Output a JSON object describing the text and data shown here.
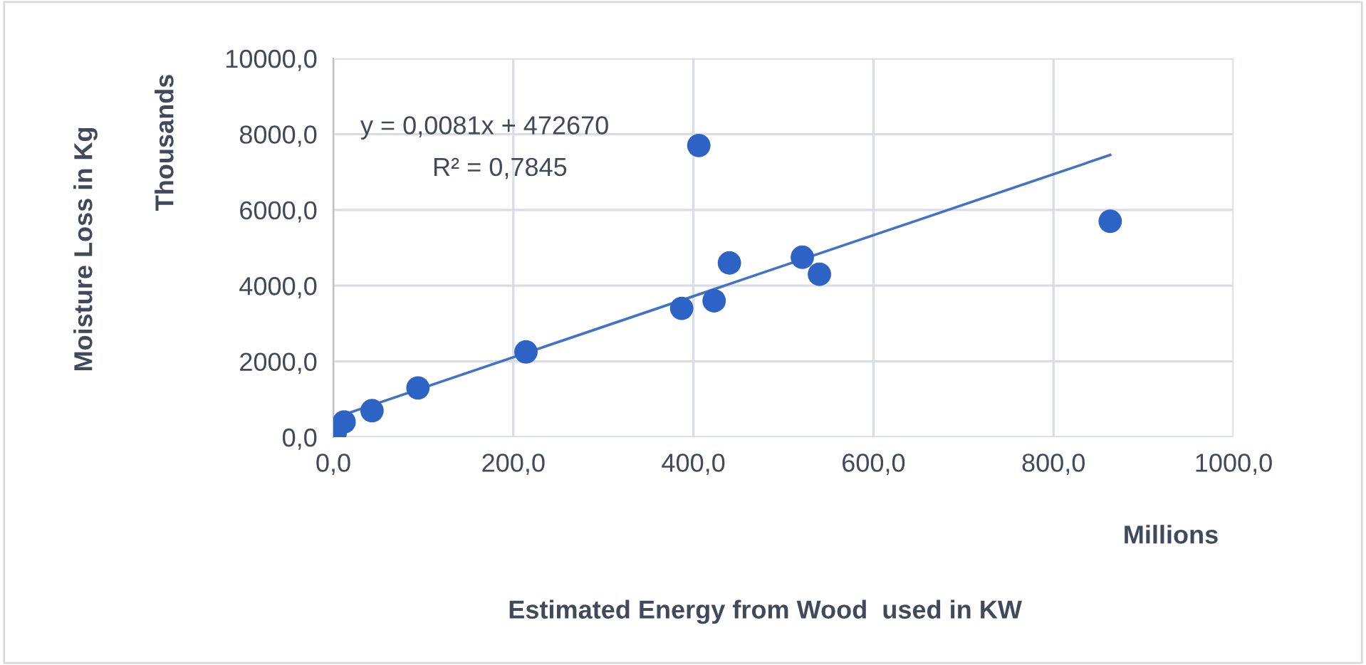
{
  "chart_data": {
    "type": "scatter",
    "xlabel": "Estimated Energy from Wood  used in KW",
    "annotations": [
      "y = 0,0081x + 472670",
      "R² = 0,7845",
      "Thousands",
      "Millions",
      "Moisture Loss in Kg"
    ],
    "series": [
      {
        "color": "#2e63c6",
        "marker": "circle",
        "x": [
          2,
          12,
          43,
          94,
          214,
          387,
          406,
          423,
          440,
          521,
          540,
          863
        ],
        "values": [
          100,
          400,
          700,
          1300,
          2250,
          3400,
          7700,
          3600,
          4600,
          4750,
          4300,
          5700
        ]
      },
      {
        "type": "line",
        "color": "#4472c4",
        "marker": "none",
        "x": [
          0,
          863
        ],
        "values": [
          500,
          7450
        ]
      }
    ],
    "xlim": [
      0,
      1000
    ],
    "ylim": [
      0,
      10000
    ],
    "xticks": [
      {
        "value": 0,
        "label": "0,0"
      },
      {
        "value": 200,
        "label": "200,0"
      },
      {
        "value": 400,
        "label": "400,0"
      },
      {
        "value": 600,
        "label": "600,0"
      },
      {
        "value": 800,
        "label": "800,0"
      },
      {
        "value": 1000,
        "label": "1000,0"
      }
    ],
    "yticks": [
      {
        "value": 0,
        "label": "0,0"
      },
      {
        "value": 2000,
        "label": "2000,0"
      },
      {
        "value": 4000,
        "label": "4000,0"
      },
      {
        "value": 6000,
        "label": "6000,0"
      },
      {
        "value": 8000,
        "label": "8000,0"
      },
      {
        "value": 10000,
        "label": "10000,0"
      }
    ],
    "grid": true,
    "legend": false
  }
}
